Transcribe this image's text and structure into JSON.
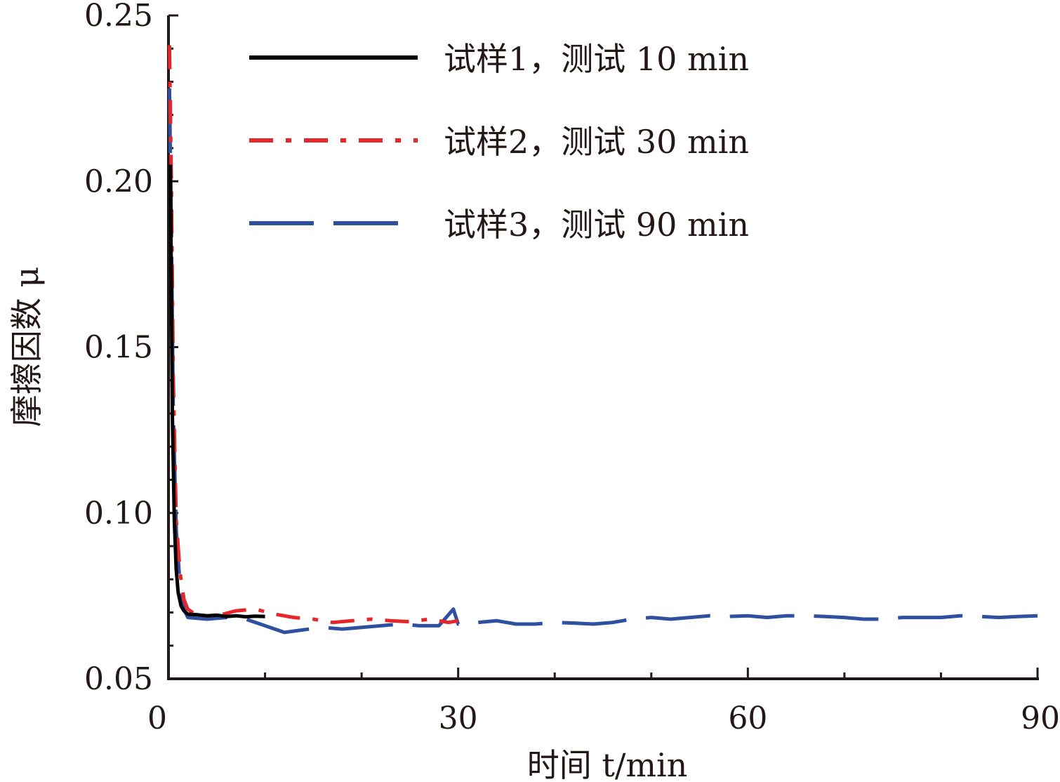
{
  "chart_data": {
    "type": "line",
    "xlabel": "时间 t/min",
    "ylabel": "摩擦因数 μ",
    "xlim": [
      0,
      90
    ],
    "ylim": [
      0.05,
      0.25
    ],
    "x_ticks": [
      "0",
      "30",
      "60",
      "90"
    ],
    "y_ticks": [
      "0.05",
      "0.10",
      "0.15",
      "0.20",
      "0.25"
    ],
    "grid": false,
    "legend_position": "top-right",
    "series": [
      {
        "name": "试样1，测试 10 min",
        "color": "#000000",
        "dash": "solid",
        "points": [
          [
            0.2,
            0.205
          ],
          [
            0.4,
            0.13
          ],
          [
            0.6,
            0.098
          ],
          [
            0.8,
            0.083
          ],
          [
            1.0,
            0.076
          ],
          [
            1.3,
            0.072
          ],
          [
            1.6,
            0.0705
          ],
          [
            2.0,
            0.0695
          ],
          [
            3,
            0.0693
          ],
          [
            4,
            0.069
          ],
          [
            5,
            0.0692
          ],
          [
            6,
            0.0688
          ],
          [
            7,
            0.069
          ],
          [
            8,
            0.0687
          ],
          [
            9,
            0.0689
          ],
          [
            10,
            0.0688
          ]
        ]
      },
      {
        "name": "试样2，测试 30 min",
        "color": "#e5262a",
        "dash": "dashdot",
        "points": [
          [
            0.1,
            0.241
          ],
          [
            0.3,
            0.2
          ],
          [
            0.5,
            0.14
          ],
          [
            0.8,
            0.098
          ],
          [
            1.2,
            0.082
          ],
          [
            1.6,
            0.074
          ],
          [
            2.0,
            0.071
          ],
          [
            3,
            0.069
          ],
          [
            5,
            0.069
          ],
          [
            7,
            0.0705
          ],
          [
            9,
            0.071
          ],
          [
            11,
            0.0695
          ],
          [
            13,
            0.0685
          ],
          [
            15,
            0.068
          ],
          [
            17,
            0.067
          ],
          [
            19,
            0.0675
          ],
          [
            21,
            0.068
          ],
          [
            23,
            0.0675
          ],
          [
            25,
            0.0672
          ],
          [
            27,
            0.068
          ],
          [
            29,
            0.067
          ],
          [
            30,
            0.0675
          ]
        ]
      },
      {
        "name": "试样3，测试 90 min",
        "color": "#2f4f9f",
        "dash": "longdash",
        "points": [
          [
            0.1,
            0.228
          ],
          [
            0.3,
            0.185
          ],
          [
            0.5,
            0.13
          ],
          [
            0.8,
            0.095
          ],
          [
            1.2,
            0.078
          ],
          [
            1.6,
            0.071
          ],
          [
            2.0,
            0.0685
          ],
          [
            4,
            0.068
          ],
          [
            6,
            0.0685
          ],
          [
            8,
            0.068
          ],
          [
            10,
            0.066
          ],
          [
            12,
            0.064
          ],
          [
            14,
            0.0648
          ],
          [
            16,
            0.0655
          ],
          [
            18,
            0.065
          ],
          [
            20,
            0.0655
          ],
          [
            22,
            0.066
          ],
          [
            24,
            0.0665
          ],
          [
            26,
            0.066
          ],
          [
            28,
            0.066
          ],
          [
            29.5,
            0.071
          ],
          [
            30,
            0.0665
          ],
          [
            32,
            0.067
          ],
          [
            34,
            0.0675
          ],
          [
            36,
            0.0665
          ],
          [
            38,
            0.0665
          ],
          [
            40,
            0.067
          ],
          [
            42,
            0.0668
          ],
          [
            44,
            0.0665
          ],
          [
            46,
            0.067
          ],
          [
            48,
            0.068
          ],
          [
            50,
            0.0685
          ],
          [
            52,
            0.068
          ],
          [
            54,
            0.0685
          ],
          [
            56,
            0.069
          ],
          [
            58,
            0.0688
          ],
          [
            60,
            0.069
          ],
          [
            62,
            0.0685
          ],
          [
            64,
            0.069
          ],
          [
            66,
            0.069
          ],
          [
            68,
            0.0688
          ],
          [
            70,
            0.0685
          ],
          [
            72,
            0.068
          ],
          [
            74,
            0.068
          ],
          [
            76,
            0.0685
          ],
          [
            78,
            0.0685
          ],
          [
            80,
            0.0685
          ],
          [
            82,
            0.069
          ],
          [
            84,
            0.0688
          ],
          [
            86,
            0.0685
          ],
          [
            88,
            0.0688
          ],
          [
            90,
            0.069
          ]
        ]
      }
    ]
  }
}
